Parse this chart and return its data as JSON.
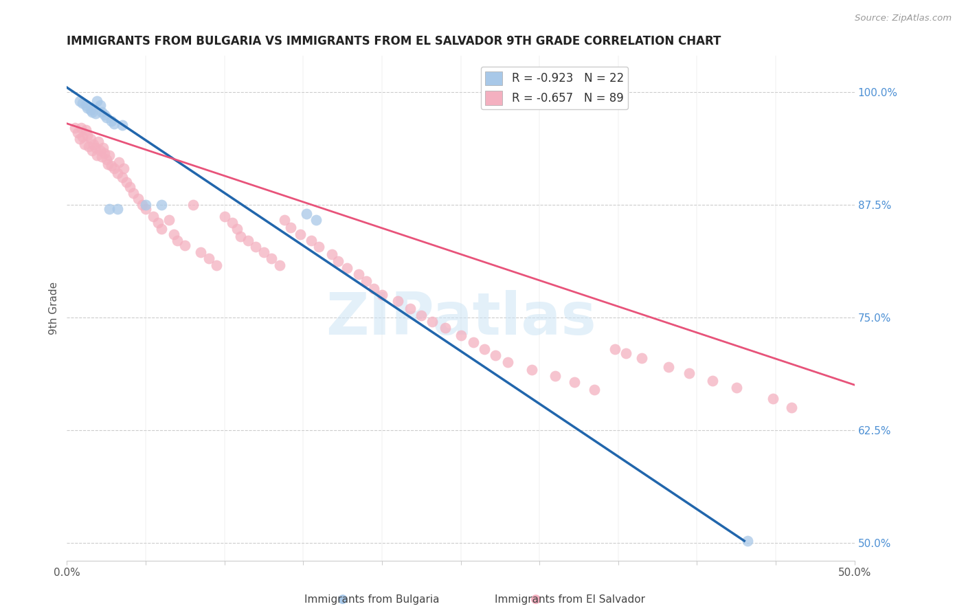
{
  "title": "IMMIGRANTS FROM BULGARIA VS IMMIGRANTS FROM EL SALVADOR 9TH GRADE CORRELATION CHART",
  "source": "Source: ZipAtlas.com",
  "ylabel": "9th Grade",
  "right_ytick_labels": [
    "100.0%",
    "87.5%",
    "75.0%",
    "62.5%",
    "50.0%"
  ],
  "right_ytick_values": [
    1.0,
    0.875,
    0.75,
    0.625,
    0.5
  ],
  "xlim": [
    0.0,
    0.5
  ],
  "ylim": [
    0.48,
    1.04
  ],
  "xtick_values": [
    0.0,
    0.05,
    0.1,
    0.15,
    0.2,
    0.25,
    0.3,
    0.35,
    0.4,
    0.45,
    0.5
  ],
  "xtick_labels_show": [
    "0.0%",
    "50.0%"
  ],
  "legend_r_bulgaria": "-0.923",
  "legend_n_bulgaria": "22",
  "legend_r_elsalvador": "-0.657",
  "legend_n_elsalvador": "89",
  "bulgaria_color": "#a8c8e8",
  "elsalvador_color": "#f4b0c0",
  "bulgaria_line_color": "#2166ac",
  "elsalvador_line_color": "#e8537a",
  "watermark": "ZIPatlas",
  "background_color": "#ffffff",
  "grid_color": "#cccccc",
  "bg_line_x0": 0.0,
  "bg_line_y0": 1.005,
  "bg_line_x1": 0.43,
  "bg_line_y1": 0.502,
  "es_line_x0": 0.0,
  "es_line_y0": 0.965,
  "es_line_x1": 0.5,
  "es_line_y1": 0.675,
  "dash_line_x0": 0.38,
  "dash_line_x1": 0.5,
  "bulgaria_pts_x": [
    0.008,
    0.01,
    0.012,
    0.013,
    0.015,
    0.016,
    0.018,
    0.019,
    0.021,
    0.022,
    0.024,
    0.025,
    0.027,
    0.028,
    0.03,
    0.032,
    0.035,
    0.05,
    0.06,
    0.152,
    0.158,
    0.432
  ],
  "bulgaria_pts_y": [
    0.99,
    0.988,
    0.985,
    0.982,
    0.98,
    0.978,
    0.976,
    0.99,
    0.985,
    0.978,
    0.975,
    0.972,
    0.87,
    0.968,
    0.965,
    0.87,
    0.963,
    0.875,
    0.875,
    0.865,
    0.858,
    0.502
  ],
  "elsalvador_pts_x": [
    0.005,
    0.007,
    0.008,
    0.009,
    0.01,
    0.011,
    0.012,
    0.013,
    0.014,
    0.015,
    0.016,
    0.017,
    0.018,
    0.019,
    0.02,
    0.021,
    0.022,
    0.023,
    0.024,
    0.025,
    0.026,
    0.027,
    0.028,
    0.03,
    0.032,
    0.033,
    0.035,
    0.036,
    0.038,
    0.04,
    0.042,
    0.045,
    0.048,
    0.05,
    0.055,
    0.058,
    0.06,
    0.065,
    0.068,
    0.07,
    0.075,
    0.08,
    0.085,
    0.09,
    0.095,
    0.1,
    0.105,
    0.108,
    0.11,
    0.115,
    0.12,
    0.125,
    0.13,
    0.135,
    0.138,
    0.142,
    0.148,
    0.155,
    0.16,
    0.168,
    0.172,
    0.178,
    0.185,
    0.19,
    0.195,
    0.2,
    0.21,
    0.218,
    0.225,
    0.232,
    0.24,
    0.25,
    0.258,
    0.265,
    0.272,
    0.28,
    0.295,
    0.31,
    0.322,
    0.335,
    0.348,
    0.355,
    0.365,
    0.382,
    0.395,
    0.41,
    0.425,
    0.448,
    0.46
  ],
  "elsalvador_pts_y": [
    0.96,
    0.955,
    0.948,
    0.96,
    0.95,
    0.942,
    0.958,
    0.952,
    0.94,
    0.948,
    0.935,
    0.942,
    0.938,
    0.93,
    0.945,
    0.935,
    0.928,
    0.938,
    0.932,
    0.925,
    0.92,
    0.93,
    0.918,
    0.915,
    0.91,
    0.922,
    0.905,
    0.915,
    0.9,
    0.895,
    0.888,
    0.882,
    0.875,
    0.87,
    0.862,
    0.855,
    0.848,
    0.858,
    0.842,
    0.835,
    0.83,
    0.875,
    0.822,
    0.815,
    0.808,
    0.862,
    0.855,
    0.848,
    0.84,
    0.835,
    0.828,
    0.822,
    0.815,
    0.808,
    0.858,
    0.85,
    0.842,
    0.835,
    0.828,
    0.82,
    0.812,
    0.805,
    0.798,
    0.79,
    0.782,
    0.775,
    0.768,
    0.76,
    0.752,
    0.745,
    0.738,
    0.73,
    0.722,
    0.715,
    0.708,
    0.7,
    0.692,
    0.685,
    0.678,
    0.67,
    0.715,
    0.71,
    0.705,
    0.695,
    0.688,
    0.68,
    0.672,
    0.66,
    0.65
  ]
}
